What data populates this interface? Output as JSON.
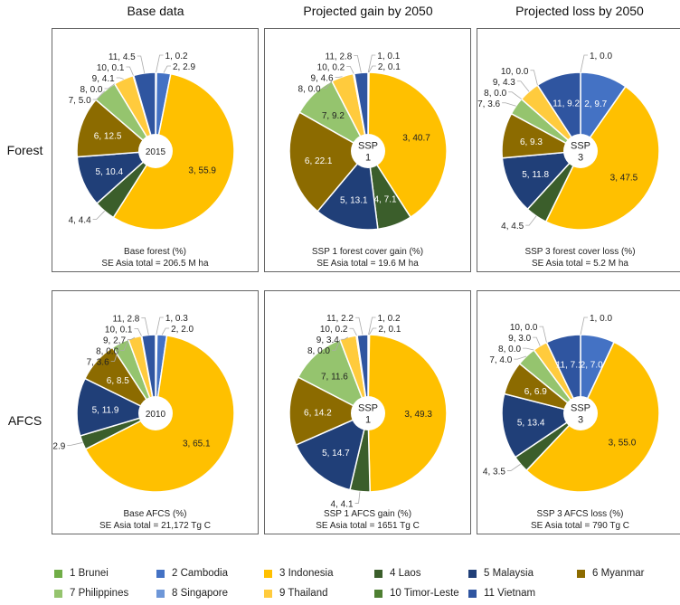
{
  "columns": [
    "Base data",
    "Projected gain by 2050",
    "Projected loss by 2050"
  ],
  "rows": [
    "Forest",
    "AFCS"
  ],
  "legend": [
    {
      "id": "1",
      "label": "1 Brunei",
      "color": "#70ad47"
    },
    {
      "id": "2",
      "label": "2 Cambodia",
      "color": "#4472c4"
    },
    {
      "id": "3",
      "label": "3 Indonesia",
      "color": "#ffc000"
    },
    {
      "id": "4",
      "label": "4 Laos",
      "color": "#3b5e2b"
    },
    {
      "id": "5",
      "label": "5 Malaysia",
      "color": "#203f78"
    },
    {
      "id": "6",
      "label": "6 Myanmar",
      "color": "#8c6b00"
    },
    {
      "id": "7",
      "label": "7 Philippines",
      "color": "#95c46e"
    },
    {
      "id": "8",
      "label": "8 Singapore",
      "color": "#6e97d8"
    },
    {
      "id": "9",
      "label": "9 Thailand",
      "color": "#ffcb3d"
    },
    {
      "id": "10",
      "label": "10 Timor-Leste",
      "color": "#4e7f32"
    },
    {
      "id": "11",
      "label": "11 Vietnam",
      "color": "#2f55a0"
    }
  ],
  "chart_data": [
    {
      "type": "pie",
      "center_label": [
        "2015"
      ],
      "values": [
        0.2,
        2.9,
        55.9,
        4.4,
        10.4,
        12.5,
        5.0,
        0.0,
        4.1,
        0.1,
        4.5
      ],
      "caption": [
        "Base forest (%)",
        "SE Asia total = 206.5 M ha"
      ]
    },
    {
      "type": "pie",
      "center_label": [
        "SSP",
        "1"
      ],
      "values": [
        0.1,
        0.1,
        40.7,
        7.1,
        13.1,
        22.1,
        9.2,
        0.0,
        4.6,
        0.2,
        2.8
      ],
      "caption": [
        "SSP 1 forest cover gain (%)",
        "SE Asia total = 19.6 M ha"
      ]
    },
    {
      "type": "pie",
      "center_label": [
        "SSP",
        "3"
      ],
      "values": [
        0.0,
        9.7,
        47.5,
        4.5,
        11.8,
        9.3,
        3.6,
        0.0,
        4.3,
        0.0,
        9.2
      ],
      "caption": [
        "SSP 3 forest cover loss (%)",
        "SE Asia total = 5.2 M ha"
      ]
    },
    {
      "type": "pie",
      "center_label": [
        "2010"
      ],
      "values": [
        0.3,
        2.0,
        65.1,
        2.9,
        11.9,
        8.5,
        3.6,
        0.0,
        2.7,
        0.1,
        2.8
      ],
      "caption": [
        "Base AFCS (%)",
        "SE Asia total = 21,172 Tg C"
      ]
    },
    {
      "type": "pie",
      "center_label": [
        "SSP",
        "1"
      ],
      "values": [
        0.2,
        0.1,
        49.3,
        4.1,
        14.7,
        14.2,
        11.6,
        0.0,
        3.4,
        0.2,
        2.2
      ],
      "caption": [
        "SSP 1 AFCS  gain (%)",
        "SE Asia total = 1651 Tg C"
      ]
    },
    {
      "type": "pie",
      "center_label": [
        "SSP",
        "3"
      ],
      "values": [
        0.0,
        7.0,
        55.0,
        3.5,
        13.4,
        6.9,
        4.0,
        0.0,
        3.0,
        0.0,
        7.1
      ],
      "caption": [
        "SSP 3 AFCS  loss (%)",
        "SE Asia total = 790 Tg C"
      ]
    }
  ]
}
